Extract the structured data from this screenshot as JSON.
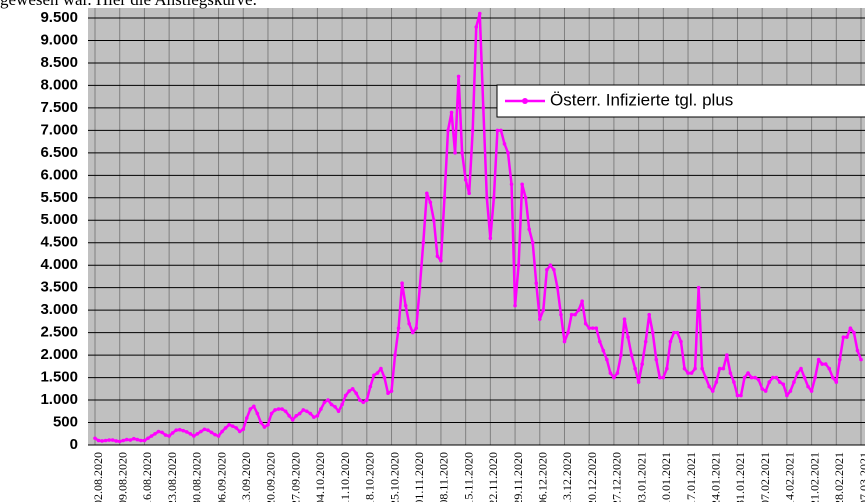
{
  "header": {
    "text": "gewesen war. Hier die Anstiegskurve."
  },
  "chart_data": {
    "type": "line",
    "legend": "upper right",
    "grid": true,
    "categories": [
      "02.08.2020",
      null,
      null,
      null,
      null,
      null,
      null,
      "09.08.2020",
      null,
      null,
      null,
      null,
      null,
      null,
      "16.08.2020",
      null,
      null,
      null,
      null,
      null,
      null,
      "23.08.2020",
      null,
      null,
      null,
      null,
      null,
      null,
      "30.08.2020",
      null,
      null,
      null,
      null,
      null,
      null,
      "06.09.2020",
      null,
      null,
      null,
      null,
      null,
      null,
      "13.09.2020",
      null,
      null,
      null,
      null,
      null,
      null,
      "20.09.2020",
      null,
      null,
      null,
      null,
      null,
      null,
      "27.09.2020",
      null,
      null,
      null,
      null,
      null,
      null,
      "04.10.2020",
      null,
      null,
      null,
      null,
      null,
      null,
      "11.10.2020",
      null,
      null,
      null,
      null,
      null,
      null,
      "18.10.2020",
      null,
      null,
      null,
      null,
      null,
      null,
      "25.10.2020",
      null,
      null,
      null,
      null,
      null,
      null,
      "01.11.2020",
      null,
      null,
      null,
      null,
      null,
      null,
      "08.11.2020",
      null,
      null,
      null,
      null,
      null,
      null,
      "15.11.2020",
      null,
      null,
      null,
      null,
      null,
      null,
      "22.11.2020",
      null,
      null,
      null,
      null,
      null,
      null,
      "29.11.2020",
      null,
      null,
      null,
      null,
      null,
      null,
      "06.12.2020",
      null,
      null,
      null,
      null,
      null,
      null,
      "13.12.2020",
      null,
      null,
      null,
      null,
      null,
      null,
      "20.12.2020",
      null,
      null,
      null,
      null,
      null,
      null,
      "27.12.2020",
      null,
      null,
      null,
      null,
      null,
      null,
      "03.01.2021",
      null,
      null,
      null,
      null,
      null,
      null,
      "10.01.2021",
      null,
      null,
      null,
      null,
      null,
      null,
      "17.01.2021",
      null,
      null,
      null,
      null,
      null,
      null,
      "24.01.2021",
      null,
      null,
      null,
      null,
      null,
      null,
      "31.01.2021",
      null,
      null,
      null,
      null,
      null,
      null,
      "07.02.2021",
      null,
      null,
      null,
      null,
      null,
      null,
      "14.02.2021",
      null,
      null,
      null,
      null,
      null,
      null,
      "21.02.2021",
      null,
      null,
      null,
      null,
      null,
      null,
      "28.02.2021",
      null,
      null,
      null,
      null,
      null,
      null,
      "07.03.2021"
    ],
    "series": [
      {
        "name": "Österr. Infizierte tgl. plus",
        "color": "#ff00ff",
        "values": [
          150,
          100,
          90,
          100,
          110,
          110,
          90,
          80,
          100,
          120,
          110,
          140,
          120,
          100,
          100,
          150,
          200,
          250,
          300,
          280,
          220,
          200,
          270,
          330,
          340,
          320,
          290,
          250,
          200,
          250,
          300,
          350,
          330,
          280,
          230,
          200,
          300,
          380,
          450,
          420,
          380,
          300,
          350,
          600,
          800,
          860,
          700,
          500,
          400,
          450,
          700,
          780,
          800,
          800,
          750,
          650,
          560,
          650,
          700,
          780,
          750,
          700,
          620,
          650,
          800,
          950,
          1000,
          900,
          850,
          750,
          900,
          1100,
          1200,
          1250,
          1150,
          1000,
          950,
          1000,
          1300,
          1550,
          1600,
          1700,
          1500,
          1150,
          1200,
          2000,
          2600,
          3600,
          3100,
          2700,
          2500,
          2600,
          3500,
          4500,
          5600,
          5400,
          5000,
          4200,
          4100,
          5500,
          7000,
          7400,
          6500,
          8200,
          6500,
          5900,
          5600,
          7000,
          9300,
          9600,
          7500,
          5500,
          4600,
          5500,
          7000,
          7000,
          6700,
          6500,
          5800,
          3100,
          4000,
          5800,
          5500,
          4800,
          4500,
          3600,
          2800,
          3000,
          3900,
          4000,
          3900,
          3500,
          2900,
          2300,
          2500,
          2900,
          2900,
          3000,
          3200,
          2700,
          2600,
          2600,
          2600,
          2300,
          2100,
          1900,
          1600,
          1500,
          1600,
          2000,
          2800,
          2400,
          2000,
          1700,
          1400,
          1800,
          2300,
          2900,
          2500,
          1900,
          1500,
          1500,
          1700,
          2300,
          2500,
          2500,
          2300,
          1700,
          1600,
          1600,
          1700,
          3500,
          1700,
          1500,
          1300,
          1200,
          1400,
          1700,
          1700,
          2000,
          1600,
          1400,
          1100,
          1100,
          1500,
          1600,
          1500,
          1500,
          1450,
          1250,
          1200,
          1400,
          1500,
          1500,
          1400,
          1350,
          1100,
          1200,
          1400,
          1600,
          1700,
          1500,
          1300,
          1200,
          1500,
          1900,
          1800,
          1800,
          1700,
          1500,
          1400,
          1900,
          2400,
          2400,
          2600,
          2500,
          2100,
          1900
        ]
      }
    ],
    "ylim": [
      0,
      9500
    ],
    "yticks": [
      0,
      500,
      {
        "value": 1000,
        "label": "1.000"
      },
      {
        "value": 1500,
        "label": "1.500"
      },
      {
        "value": 2000,
        "label": "2.000"
      },
      {
        "value": 2500,
        "label": "2.500"
      },
      {
        "value": 3000,
        "label": "3.000"
      },
      {
        "value": 3500,
        "label": "3.500"
      },
      {
        "value": 4000,
        "label": "4.000"
      },
      {
        "value": 4500,
        "label": "4.500"
      },
      {
        "value": 5000,
        "label": "5.000"
      },
      {
        "value": 5500,
        "label": "5.500"
      },
      {
        "value": 6000,
        "label": "6.000"
      },
      {
        "value": 6500,
        "label": "6.500"
      },
      {
        "value": 7000,
        "label": "7.000"
      },
      {
        "value": 7500,
        "label": "7.500"
      },
      {
        "value": 8000,
        "label": "8.000"
      },
      {
        "value": 8500,
        "label": "8.500"
      },
      {
        "value": 9000,
        "label": "9.000"
      },
      {
        "value": 9500,
        "label": "9.500"
      }
    ]
  }
}
